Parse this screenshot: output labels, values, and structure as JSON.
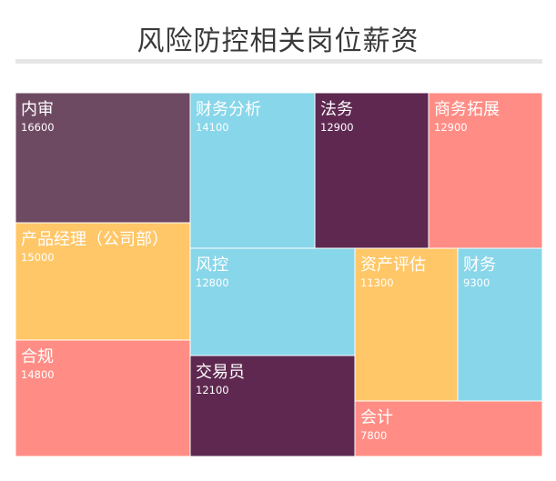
{
  "chart_data": {
    "type": "treemap",
    "title": "风险防控相关岗位薪资",
    "items": [
      {
        "name": "内审",
        "value": 16600,
        "color": "#6e4a62"
      },
      {
        "name": "产品经理（公司部）",
        "value": 15000,
        "color": "#ffc768"
      },
      {
        "name": "合规",
        "value": 14800,
        "color": "#ff8d85"
      },
      {
        "name": "财务分析",
        "value": 14100,
        "color": "#88d6ea"
      },
      {
        "name": "法务",
        "value": 12900,
        "color": "#5e2850"
      },
      {
        "name": "商务拓展",
        "value": 12900,
        "color": "#ff8d85"
      },
      {
        "name": "风控",
        "value": 12800,
        "color": "#88d6ea"
      },
      {
        "name": "交易员",
        "value": 12100,
        "color": "#5e2850"
      },
      {
        "name": "资产评估",
        "value": 11300,
        "color": "#ffc768"
      },
      {
        "name": "财务",
        "value": 9300,
        "color": "#88d6ea"
      },
      {
        "name": "会计",
        "value": 7800,
        "color": "#ff8d85"
      }
    ]
  }
}
